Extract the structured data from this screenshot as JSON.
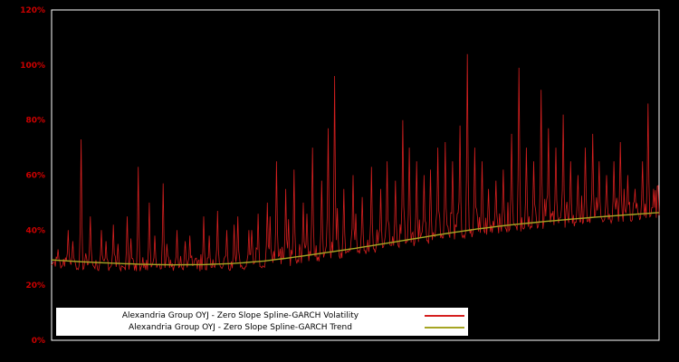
{
  "figure": {
    "background_color": "#000000",
    "frame_color": "#ffffff"
  },
  "axis": {
    "tick_color": "#cc0000",
    "yticks": [
      "0%",
      "20%",
      "40%",
      "60%",
      "80%",
      "100%",
      "120%"
    ]
  },
  "chart_data": {
    "type": "line",
    "title": "",
    "xlabel": "",
    "ylabel": "",
    "ylim": [
      0,
      120
    ],
    "ytick_step": 20,
    "grid": false,
    "legend_position": "bottom-left-inside",
    "series": [
      {
        "name": "Alexandria Group OYJ - Zero Slope Spline-GARCH Volatility",
        "color": "#d51f1f",
        "style": "noisy"
      },
      {
        "name": "Alexandria Group OYJ - Zero Slope Spline-GARCH Trend",
        "color": "#a6a523",
        "style": "smooth"
      }
    ],
    "trend_points": [
      [
        0.0,
        29.2
      ],
      [
        0.05,
        28.5
      ],
      [
        0.1,
        28.0
      ],
      [
        0.15,
        27.6
      ],
      [
        0.2,
        27.4
      ],
      [
        0.25,
        27.5
      ],
      [
        0.3,
        27.9
      ],
      [
        0.35,
        28.8
      ],
      [
        0.4,
        30.2
      ],
      [
        0.45,
        31.8
      ],
      [
        0.5,
        33.4
      ],
      [
        0.55,
        35.2
      ],
      [
        0.6,
        37.0
      ],
      [
        0.65,
        38.8
      ],
      [
        0.7,
        40.4
      ],
      [
        0.75,
        41.8
      ],
      [
        0.8,
        42.9
      ],
      [
        0.85,
        43.9
      ],
      [
        0.9,
        44.8
      ],
      [
        0.95,
        45.6
      ],
      [
        1.0,
        46.4
      ]
    ],
    "volatility_model": {
      "n_points": 660,
      "baseline_offset": -1.0,
      "noise_down": 2.0,
      "noise_up_base": 4.0,
      "noise_up_slope": 8.0,
      "seed": 42,
      "spikes": [
        [
          0.01,
          33
        ],
        [
          0.027,
          40
        ],
        [
          0.035,
          36
        ],
        [
          0.049,
          73
        ],
        [
          0.064,
          45
        ],
        [
          0.082,
          40
        ],
        [
          0.09,
          36
        ],
        [
          0.101,
          42
        ],
        [
          0.11,
          35
        ],
        [
          0.124,
          45
        ],
        [
          0.13,
          37
        ],
        [
          0.142,
          63
        ],
        [
          0.161,
          50
        ],
        [
          0.17,
          38
        ],
        [
          0.183,
          57
        ],
        [
          0.19,
          35
        ],
        [
          0.206,
          40
        ],
        [
          0.22,
          36
        ],
        [
          0.228,
          38
        ],
        [
          0.25,
          45
        ],
        [
          0.26,
          38
        ],
        [
          0.273,
          47
        ],
        [
          0.288,
          40
        ],
        [
          0.3,
          42
        ],
        [
          0.306,
          45
        ],
        [
          0.325,
          40
        ],
        [
          0.33,
          40
        ],
        [
          0.34,
          46
        ],
        [
          0.355,
          50
        ],
        [
          0.36,
          45
        ],
        [
          0.37,
          65
        ],
        [
          0.385,
          55
        ],
        [
          0.39,
          44
        ],
        [
          0.399,
          62
        ],
        [
          0.414,
          50
        ],
        [
          0.42,
          46
        ],
        [
          0.429,
          70
        ],
        [
          0.444,
          58
        ],
        [
          0.455,
          77
        ],
        [
          0.466,
          96
        ],
        [
          0.47,
          48
        ],
        [
          0.481,
          55
        ],
        [
          0.496,
          60
        ],
        [
          0.5,
          46
        ],
        [
          0.511,
          52
        ],
        [
          0.526,
          63
        ],
        [
          0.541,
          55
        ],
        [
          0.553,
          65
        ],
        [
          0.566,
          58
        ],
        [
          0.578,
          80
        ],
        [
          0.589,
          70
        ],
        [
          0.601,
          65
        ],
        [
          0.613,
          60
        ],
        [
          0.624,
          62
        ],
        [
          0.636,
          70
        ],
        [
          0.648,
          72
        ],
        [
          0.66,
          65
        ],
        [
          0.672,
          78
        ],
        [
          0.684,
          104
        ],
        [
          0.696,
          70
        ],
        [
          0.708,
          65
        ],
        [
          0.72,
          55
        ],
        [
          0.732,
          58
        ],
        [
          0.744,
          62
        ],
        [
          0.757,
          75
        ],
        [
          0.769,
          99
        ],
        [
          0.781,
          70
        ],
        [
          0.794,
          65
        ],
        [
          0.806,
          91
        ],
        [
          0.818,
          77
        ],
        [
          0.83,
          70
        ],
        [
          0.842,
          82
        ],
        [
          0.854,
          65
        ],
        [
          0.866,
          60
        ],
        [
          0.878,
          70
        ],
        [
          0.89,
          75
        ],
        [
          0.902,
          65
        ],
        [
          0.914,
          60
        ],
        [
          0.926,
          65
        ],
        [
          0.937,
          72
        ],
        [
          0.949,
          60
        ],
        [
          0.961,
          55
        ],
        [
          0.973,
          65
        ],
        [
          0.982,
          86
        ],
        [
          0.991,
          55
        ]
      ]
    }
  }
}
